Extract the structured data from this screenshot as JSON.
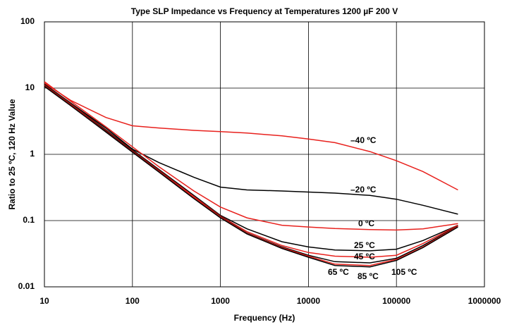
{
  "chart_data": {
    "type": "line",
    "title": "Type SLP Impedance vs Frequency at Temperatures 1200 µF 200 V",
    "x_label": "Frequency (Hz)",
    "y_label": "Ratio to 25 ºC, 120 Hz Value",
    "xscale": "log",
    "yscale": "log",
    "grid": true,
    "xlim": [
      10,
      1000000
    ],
    "xticks": [
      10,
      100,
      1000,
      10000,
      100000,
      1000000
    ],
    "ylim": [
      0.01,
      100
    ],
    "yticks": [
      0.01,
      0.1,
      1,
      10,
      100
    ],
    "x": [
      10,
      20,
      50,
      100,
      200,
      500,
      1000,
      2000,
      5000,
      10000,
      20000,
      50000,
      100000,
      200000,
      500000
    ],
    "series": [
      {
        "name": "–40 ºC",
        "color": "#e8211d",
        "values": [
          11.9,
          6.5,
          3.6,
          2.7,
          2.5,
          2.3,
          2.2,
          2.1,
          1.9,
          1.7,
          1.5,
          1.1,
          0.8,
          0.55,
          0.29
        ]
      },
      {
        "name": "–20 ºC",
        "color": "#000000",
        "values": [
          11.5,
          5.9,
          2.5,
          1.2,
          0.75,
          0.45,
          0.32,
          0.29,
          0.28,
          0.27,
          0.26,
          0.24,
          0.21,
          0.17,
          0.125
        ]
      },
      {
        "name": "0 ºC",
        "color": "#e8211d",
        "values": [
          12.5,
          6.3,
          2.6,
          1.3,
          0.65,
          0.28,
          0.16,
          0.11,
          0.085,
          0.08,
          0.076,
          0.073,
          0.072,
          0.075,
          0.09
        ]
      },
      {
        "name": "25 ºC",
        "color": "#000000",
        "values": [
          11.5,
          5.8,
          2.35,
          1.17,
          0.59,
          0.24,
          0.12,
          0.075,
          0.048,
          0.04,
          0.036,
          0.035,
          0.037,
          0.05,
          0.085
        ]
      },
      {
        "name": "45 ºC",
        "color": "#e8211d",
        "values": [
          11.2,
          5.7,
          2.3,
          1.14,
          0.57,
          0.23,
          0.117,
          0.068,
          0.042,
          0.033,
          0.029,
          0.028,
          0.03,
          0.045,
          0.085
        ]
      },
      {
        "name": "65 ºC",
        "color": "#000000",
        "values": [
          11,
          5.6,
          2.25,
          1.12,
          0.56,
          0.22,
          0.115,
          0.065,
          0.04,
          0.03,
          0.024,
          0.023,
          0.027,
          0.042,
          0.083
        ]
      },
      {
        "name": "85 ºC",
        "color": "#e8211d",
        "values": [
          10.8,
          5.5,
          2.2,
          1.1,
          0.55,
          0.22,
          0.113,
          0.064,
          0.039,
          0.029,
          0.022,
          0.021,
          0.026,
          0.04,
          0.082
        ]
      },
      {
        "name": "105 ºC",
        "color": "#000000",
        "values": [
          10.6,
          5.4,
          2.17,
          1.08,
          0.54,
          0.215,
          0.11,
          0.063,
          0.038,
          0.028,
          0.021,
          0.02,
          0.025,
          0.039,
          0.08
        ]
      }
    ]
  }
}
